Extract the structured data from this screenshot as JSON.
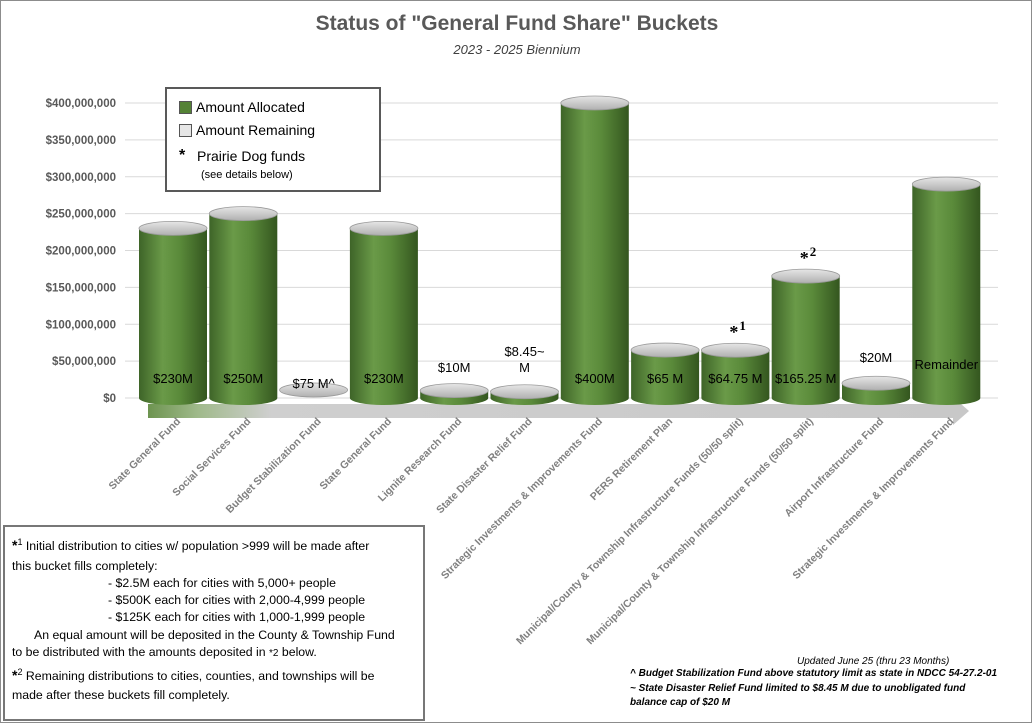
{
  "title": "Status of \"General Fund Share\" Buckets",
  "subtitle": "2023 - 2025 Biennium",
  "legend": {
    "allocated": "Amount Allocated",
    "remaining": "Amount Remaining",
    "star_symbol": "*",
    "prairie": "Prairie Dog funds",
    "details": "(see details below)"
  },
  "colors": {
    "allocated": "#548235",
    "remaining": "#d9d9d9",
    "axis_arrow": "#c0c0c0"
  },
  "chart_data": {
    "type": "bar",
    "title": "Status of \"General Fund Share\" Buckets",
    "subtitle": "2023 - 2025 Biennium",
    "ylim": [
      0,
      400000000
    ],
    "yticks": [
      0,
      50000000,
      100000000,
      150000000,
      200000000,
      250000000,
      300000000,
      350000000,
      400000000
    ],
    "ytick_labels": [
      "$0",
      "$50,000,000",
      "$100,000,000",
      "$150,000,000",
      "$200,000,000",
      "$250,000,000",
      "$300,000,000",
      "$350,000,000",
      "$400,000,000"
    ],
    "grid": true,
    "legend_position": "top-left",
    "categories": [
      "State General Fund",
      "Social Services Fund",
      "Budget Stabilization Fund",
      "State General Fund",
      "Lignite Research Fund",
      "State Disaster Relief Fund",
      "Strategic Investments & Improvements Fund",
      "PERS Retirement Plan",
      "Municipal/County & Township Infrastructure Funds (50/50 split)",
      "Municipal/County & Township Infrastructure Funds (50/50 split)",
      "Airport Infrastructure Fund",
      "Strategic Investments & Improvements Fund"
    ],
    "series": [
      {
        "name": "Amount Allocated",
        "values": [
          230000000,
          250000000,
          0,
          230000000,
          10000000,
          8450000,
          400000000,
          65000000,
          64750000,
          165250000,
          20000000,
          290000000
        ]
      }
    ],
    "data_labels": [
      "$230M",
      "$250M",
      "$75 M^",
      "$230M",
      "$10M",
      "$8.45~ M",
      "$400M",
      "$65 M",
      "$64.75 M",
      "$165.25 M",
      "$20M",
      "Remainder"
    ],
    "annotations": [
      {
        "category_index": 8,
        "text": "*1"
      },
      {
        "category_index": 9,
        "text": "*2"
      }
    ]
  },
  "notes": {
    "star": "*",
    "n1_sup": "1",
    "n1_line1": "Initial distribution to cities w/ population >999 will be made after",
    "n1_line2": "this bucket fills completely:",
    "n1_b1": "- $2.5M each for cities with 5,000+ people",
    "n1_b2": "- $500K each for cities with 2,000-4,999 people",
    "n1_b3": "- $125K each for cities with 1,000-1,999 people",
    "n1_line3": "An equal amount will be deposited in the County & Township Fund",
    "n1_line4a": "to be distributed with the amounts deposited in ",
    "n1_line4_ref": "*2",
    "n1_line4b": " below.",
    "n2_sup": "2",
    "n2_line1": "Remaining distributions to cities, counties, and townships will be",
    "n2_line2": "made after these buckets fill completely."
  },
  "footer": {
    "updated": "Updated June 25 (thru 23 Months)",
    "caret_note": "^ Budget Stabilization Fund above statutory limit as state in NDCC 54-27.2-01",
    "tilde_note1": "~ State Disaster Relief Fund limited to $8.45 M due to unobligated fund",
    "tilde_note2": "balance cap of $20 M"
  }
}
